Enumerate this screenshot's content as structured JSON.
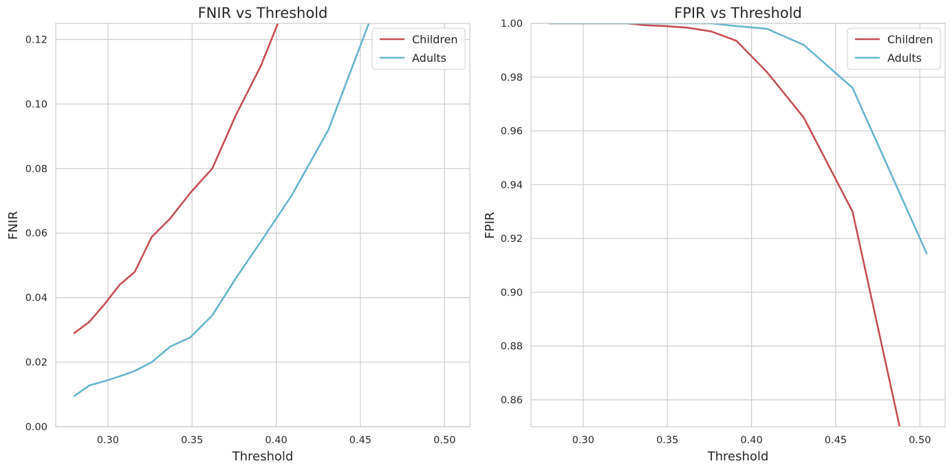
{
  "colors": {
    "children": "#c44e52",
    "adults": "#64b5cd",
    "grid": "#cccccc",
    "frame": "#cccccc"
  },
  "chart_data": [
    {
      "type": "line",
      "title": "FNIR vs Threshold",
      "xlabel": "Threshold",
      "ylabel": "FNIR",
      "xlim": [
        0.269,
        0.515
      ],
      "ylim": [
        0,
        0.125
      ],
      "grid": true,
      "legend_position": "top-right",
      "xticks": [
        0.3,
        0.35,
        0.4,
        0.45,
        0.5
      ],
      "xtick_labels": [
        "0.30",
        "0.35",
        "0.40",
        "0.45",
        "0.50"
      ],
      "yticks": [
        0.0,
        0.02,
        0.04,
        0.06,
        0.08,
        0.1,
        0.12
      ],
      "ytick_labels": [
        "0.00",
        "0.02",
        "0.04",
        "0.06",
        "0.08",
        "0.10",
        "0.12"
      ],
      "series": [
        {
          "name": "Children",
          "color": "#c44e52",
          "x": [
            0.28,
            0.289,
            0.298,
            0.307,
            0.316,
            0.326,
            0.337,
            0.349,
            0.362,
            0.376,
            0.391,
            0.401
          ],
          "y": [
            0.029,
            0.0325,
            0.038,
            0.044,
            0.048,
            0.0588,
            0.0645,
            0.0725,
            0.08,
            0.0965,
            0.112,
            0.125
          ]
        },
        {
          "name": "Adults",
          "color": "#64b5cd",
          "x": [
            0.28,
            0.289,
            0.298,
            0.307,
            0.316,
            0.326,
            0.337,
            0.349,
            0.362,
            0.376,
            0.391,
            0.409,
            0.431,
            0.455
          ],
          "y": [
            0.0095,
            0.0128,
            0.0141,
            0.0156,
            0.0173,
            0.02,
            0.0248,
            0.0277,
            0.0345,
            0.046,
            0.0575,
            0.0715,
            0.092,
            0.125
          ]
        }
      ]
    },
    {
      "type": "line",
      "title": "FPIR vs Threshold",
      "xlabel": "Threshold",
      "ylabel": "FPIR",
      "xlim": [
        0.269,
        0.515
      ],
      "ylim": [
        0.85,
        1.0
      ],
      "grid": true,
      "legend_position": "top-right",
      "xticks": [
        0.3,
        0.35,
        0.4,
        0.45,
        0.5
      ],
      "xtick_labels": [
        "0.30",
        "0.35",
        "0.40",
        "0.45",
        "0.50"
      ],
      "yticks": [
        0.86,
        0.88,
        0.9,
        0.92,
        0.94,
        0.96,
        0.98,
        1.0
      ],
      "ytick_labels": [
        "0.86",
        "0.88",
        "0.90",
        "0.92",
        "0.94",
        "0.96",
        "0.98",
        "1.00"
      ],
      "series": [
        {
          "name": "Children",
          "color": "#c44e52",
          "x": [
            0.28,
            0.307,
            0.326,
            0.337,
            0.349,
            0.362,
            0.376,
            0.391,
            0.409,
            0.431,
            0.46,
            0.488
          ],
          "y": [
            1.0,
            1.0,
            1.0,
            0.9993,
            0.999,
            0.9984,
            0.997,
            0.9935,
            0.982,
            0.965,
            0.93,
            0.85
          ]
        },
        {
          "name": "Adults",
          "color": "#64b5cd",
          "x": [
            0.28,
            0.307,
            0.326,
            0.349,
            0.376,
            0.391,
            0.409,
            0.431,
            0.46,
            0.504
          ],
          "y": [
            1.0,
            1.0,
            1.0,
            1.0,
            1.0,
            0.999,
            0.998,
            0.992,
            0.976,
            0.9145
          ]
        }
      ]
    }
  ]
}
